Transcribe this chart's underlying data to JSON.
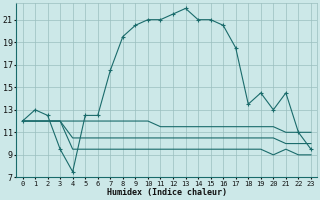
{
  "xlabel": "Humidex (Indice chaleur)",
  "bg_color": "#cce8e8",
  "grid_color": "#9bbfbf",
  "line_color": "#1a6b6b",
  "x_values": [
    0,
    1,
    2,
    3,
    4,
    5,
    6,
    7,
    8,
    9,
    10,
    11,
    12,
    13,
    14,
    15,
    16,
    17,
    18,
    19,
    20,
    21,
    22,
    23
  ],
  "series1": [
    12,
    13,
    12.5,
    9.5,
    7.5,
    12.5,
    12.5,
    16.5,
    19.5,
    20.5,
    21,
    21,
    21.5,
    22,
    21,
    21,
    20.5,
    18.5,
    13.5,
    14.5,
    13,
    14.5,
    11,
    9.5
  ],
  "series2": [
    12,
    12,
    12,
    12,
    12,
    12,
    12,
    12,
    12,
    12,
    12,
    11.5,
    11.5,
    11.5,
    11.5,
    11.5,
    11.5,
    11.5,
    11.5,
    11.5,
    11.5,
    11,
    11,
    11
  ],
  "series3": [
    12,
    12,
    12,
    12,
    10.5,
    10.5,
    10.5,
    10.5,
    10.5,
    10.5,
    10.5,
    10.5,
    10.5,
    10.5,
    10.5,
    10.5,
    10.5,
    10.5,
    10.5,
    10.5,
    10.5,
    10,
    10,
    10
  ],
  "series4": [
    12,
    12,
    12,
    12,
    9.5,
    9.5,
    9.5,
    9.5,
    9.5,
    9.5,
    9.5,
    9.5,
    9.5,
    9.5,
    9.5,
    9.5,
    9.5,
    9.5,
    9.5,
    9.5,
    9,
    9.5,
    9,
    9
  ],
  "ylim": [
    7,
    22.5
  ],
  "xlim": [
    -0.5,
    23.5
  ],
  "yticks": [
    7,
    9,
    11,
    13,
    15,
    17,
    19,
    21
  ],
  "xticks": [
    0,
    1,
    2,
    3,
    4,
    5,
    6,
    7,
    8,
    9,
    10,
    11,
    12,
    13,
    14,
    15,
    16,
    17,
    18,
    19,
    20,
    21,
    22,
    23
  ]
}
